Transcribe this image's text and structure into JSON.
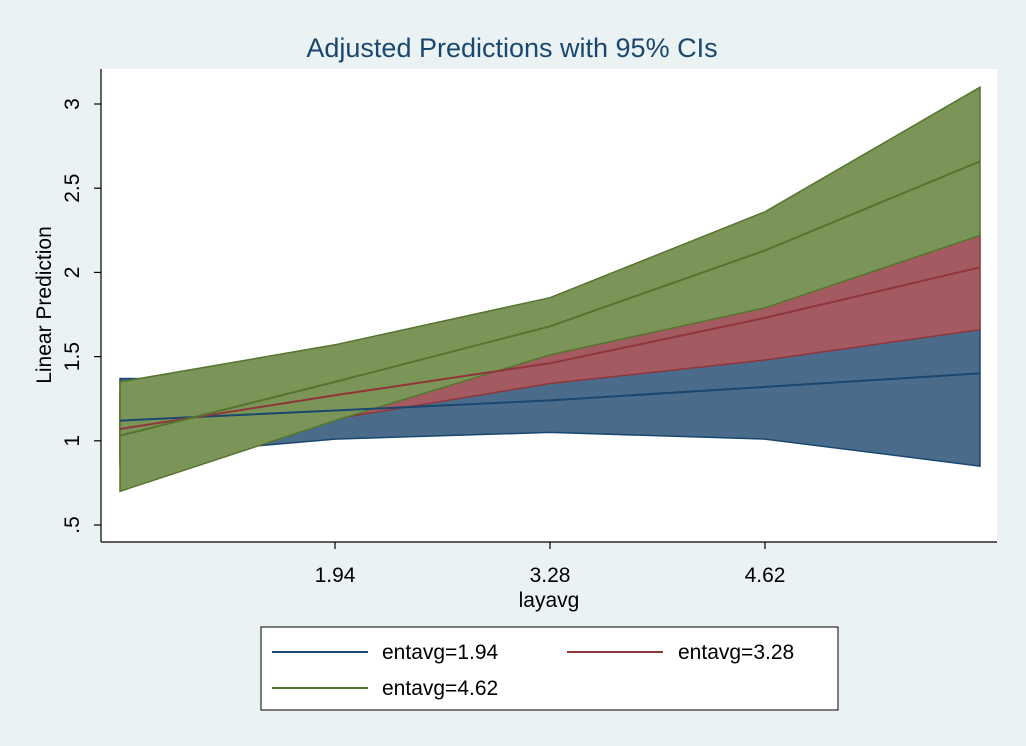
{
  "chart_data": {
    "type": "area",
    "title": "Adjusted Predictions with 95% CIs",
    "xlabel": "layavg",
    "ylabel": "Linear Prediction",
    "x": [
      0.6,
      1.94,
      3.28,
      4.62,
      5.96
    ],
    "xticks": [
      1.94,
      3.28,
      4.62
    ],
    "xtick_labels": [
      "1.94",
      "3.28",
      "4.62"
    ],
    "xlim": [
      0.6,
      5.96
    ],
    "ylim": [
      0.5,
      3.1
    ],
    "yticks": [
      0.5,
      1,
      1.5,
      2,
      2.5,
      3
    ],
    "ytick_labels": [
      ".5",
      "1",
      "1.5",
      "2",
      "2.5",
      "3"
    ],
    "grid": false,
    "legend_position": "bottom",
    "series": [
      {
        "name": "entavg=1.94",
        "color": "#1a476f",
        "fill": "#4a6b8a",
        "values": [
          1.12,
          1.18,
          1.24,
          1.32,
          1.4
        ],
        "lower": [
          0.9,
          1.01,
          1.05,
          1.01,
          0.85
        ],
        "upper": [
          1.37,
          1.36,
          1.45,
          1.65,
          1.67
        ]
      },
      {
        "name": "entavg=3.28",
        "color": "#90353b",
        "fill": "#a35a60",
        "values": [
          1.07,
          1.27,
          1.46,
          1.73,
          2.03
        ],
        "lower": [
          0.85,
          1.13,
          1.34,
          1.48,
          1.66
        ],
        "upper": [
          1.27,
          1.42,
          1.59,
          1.95,
          2.22
        ]
      },
      {
        "name": "entavg=4.62",
        "color": "#55752f",
        "fill": "#7a9557",
        "values": [
          1.03,
          1.35,
          1.68,
          2.13,
          2.66
        ],
        "lower": [
          0.7,
          1.12,
          1.51,
          1.79,
          2.22
        ],
        "upper": [
          1.35,
          1.57,
          1.85,
          2.36,
          3.1
        ]
      }
    ]
  }
}
